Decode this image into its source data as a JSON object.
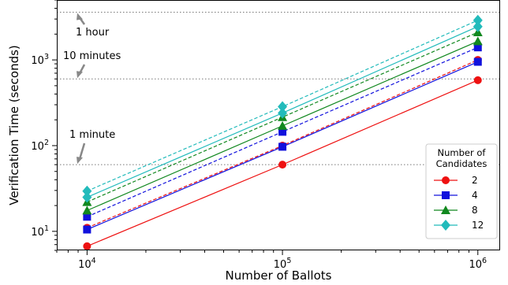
{
  "chart_data": {
    "type": "line",
    "xscale": "log",
    "yscale": "log",
    "xlim": [
      7000,
      1300000
    ],
    "ylim": [
      6,
      5000
    ],
    "xlabel": "Number of Ballots",
    "ylabel": "Verification Time (seconds)",
    "x_ticks": [
      {
        "value": 10000,
        "base": "10",
        "exp": "4"
      },
      {
        "value": 100000,
        "base": "10",
        "exp": "5"
      },
      {
        "value": 1000000,
        "base": "10",
        "exp": "6"
      }
    ],
    "y_ticks": [
      {
        "value": 10,
        "base": "10",
        "exp": "1"
      },
      {
        "value": 100,
        "base": "10",
        "exp": "2"
      },
      {
        "value": 1000,
        "base": "10",
        "exp": "3"
      }
    ],
    "x": [
      10000,
      100000,
      1000000
    ],
    "reference_lines": [
      {
        "value": 60,
        "label": "1 minute"
      },
      {
        "value": 600,
        "label": "10 minutes"
      },
      {
        "value": 3600,
        "label": "1 hour"
      }
    ],
    "legend": {
      "title_line1": "Number of",
      "title_line2": "Candidates",
      "placement": "bottom-right"
    },
    "series": [
      {
        "name": "2",
        "color": "#ee1111",
        "marker": "circle",
        "solid": [
          6.7,
          60,
          580
        ],
        "dashed": [
          11,
          100,
          1000
        ]
      },
      {
        "name": "4",
        "color": "#1111dd",
        "marker": "square",
        "solid": [
          10.5,
          97,
          950
        ],
        "dashed": [
          14.8,
          145,
          1400
        ]
      },
      {
        "name": "8",
        "color": "#11881f",
        "marker": "triangle",
        "solid": [
          17.5,
          170,
          1650
        ],
        "dashed": [
          22,
          215,
          2100
        ]
      },
      {
        "name": "12",
        "color": "#22bbbb",
        "marker": "diamond",
        "solid": [
          25,
          240,
          2450
        ],
        "dashed": [
          29.5,
          285,
          2900
        ]
      }
    ]
  }
}
